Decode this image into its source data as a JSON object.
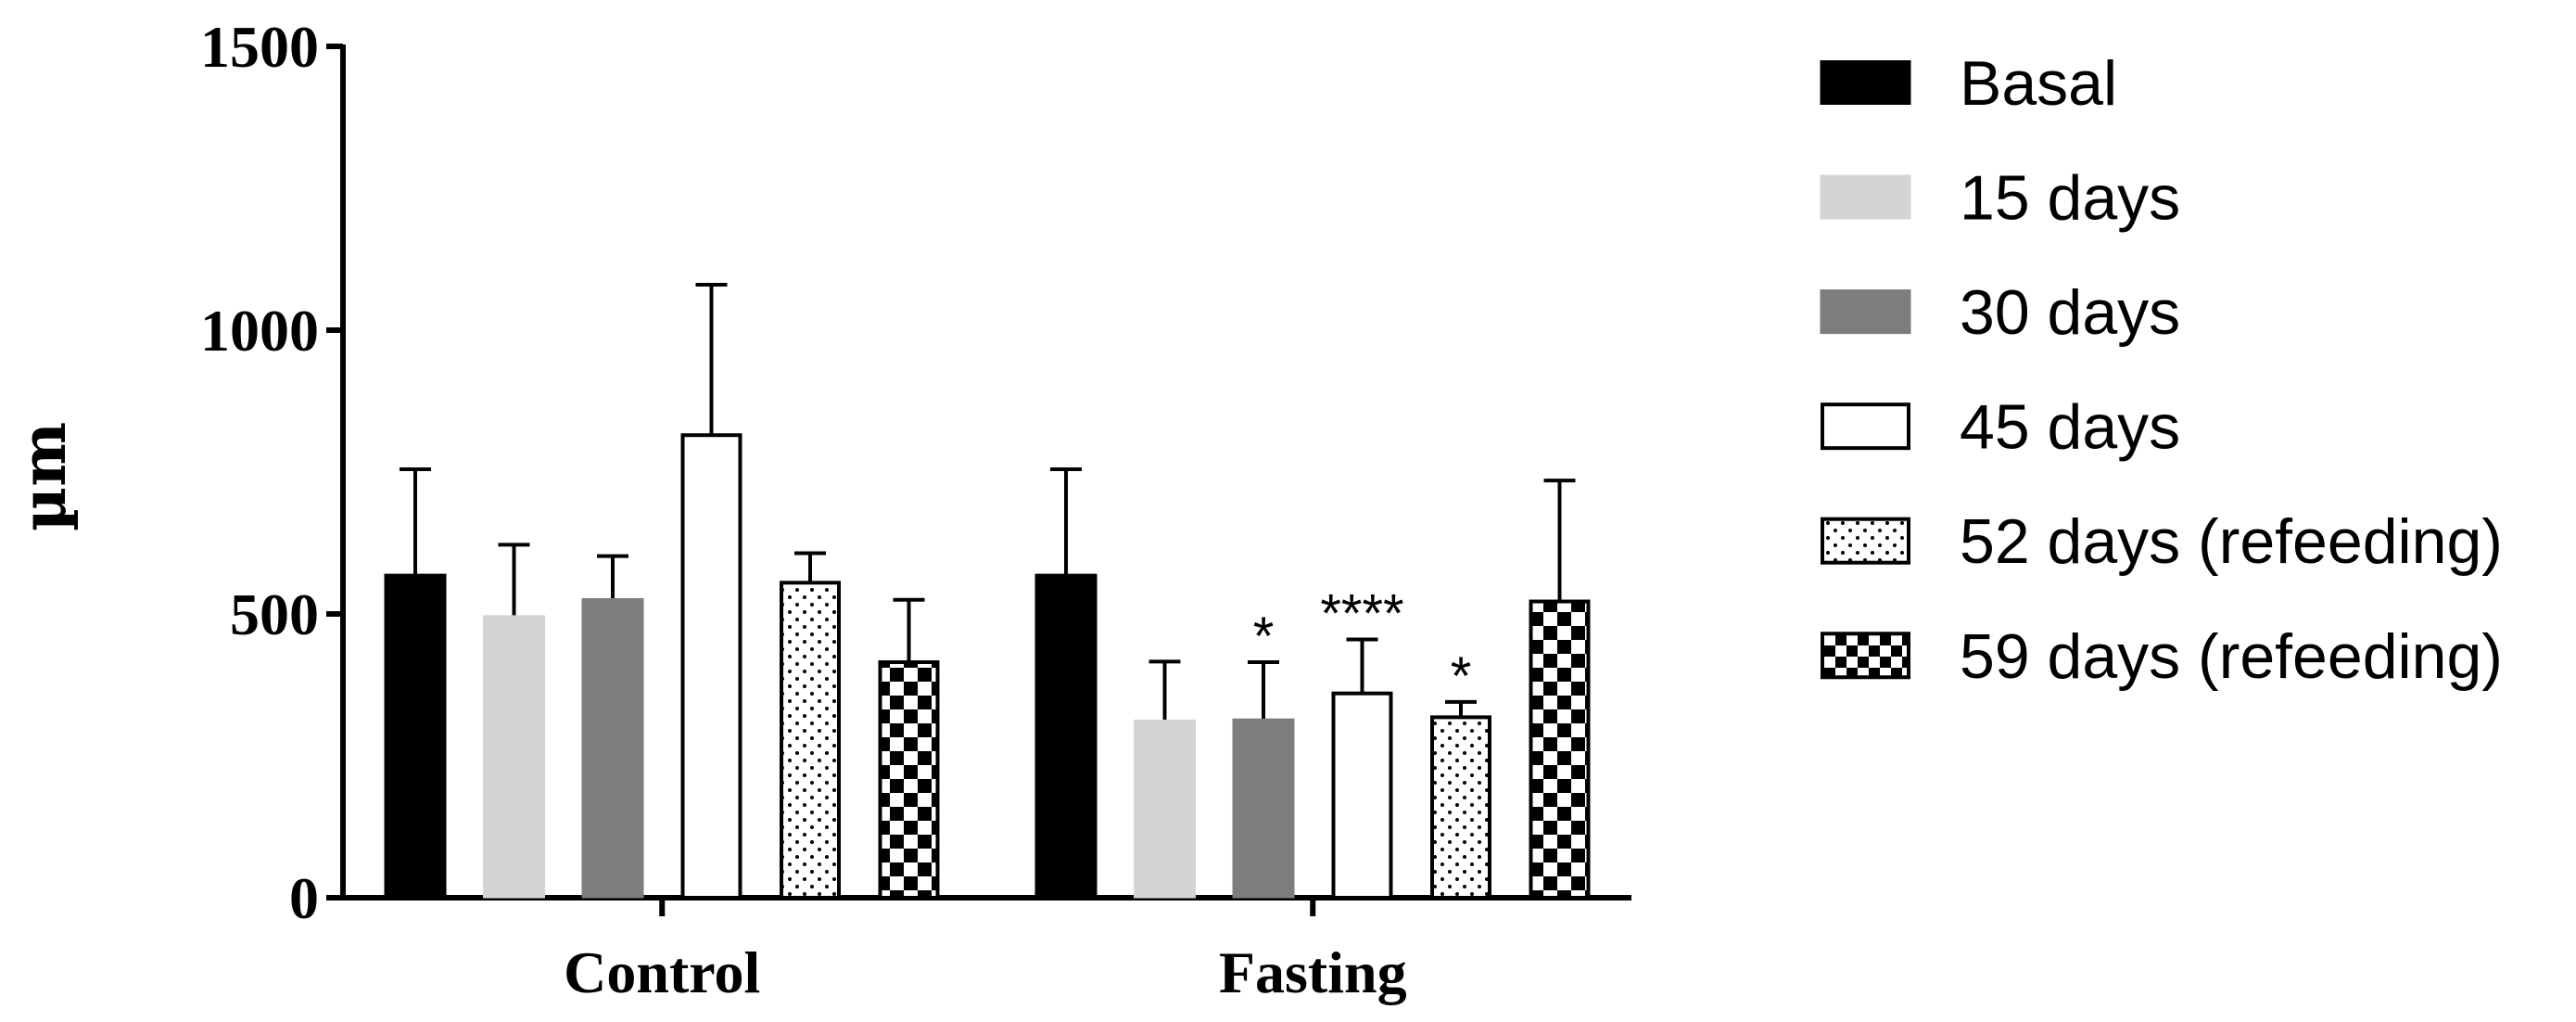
{
  "chart_data": {
    "type": "bar",
    "categories": [
      "Control",
      "Fasting"
    ],
    "ylabel": "µm",
    "xlabel": "",
    "title": "",
    "ylim": [
      0,
      1500
    ],
    "yticks": [
      0,
      500,
      1000,
      1500
    ],
    "series": [
      {
        "name": "Basal",
        "pattern": "solid-black",
        "values": [
          570,
          570
        ],
        "errors": [
          185,
          185
        ],
        "significance": [
          "",
          ""
        ]
      },
      {
        "name": "15 days",
        "pattern": "solid-lightgray",
        "values": [
          497,
          313
        ],
        "errors": [
          125,
          103
        ],
        "significance": [
          "",
          ""
        ]
      },
      {
        "name": "30 days",
        "pattern": "solid-darkgray",
        "values": [
          527,
          315
        ],
        "errors": [
          75,
          100
        ],
        "significance": [
          "",
          "*"
        ]
      },
      {
        "name": "45 days",
        "pattern": "white",
        "values": [
          815,
          360
        ],
        "errors": [
          265,
          95
        ],
        "significance": [
          "",
          "****"
        ]
      },
      {
        "name": "52 days (refeeding)",
        "pattern": "dots",
        "values": [
          555,
          318
        ],
        "errors": [
          52,
          27
        ],
        "significance": [
          "",
          "*"
        ]
      },
      {
        "name": "59 days (refeeding)",
        "pattern": "checker",
        "values": [
          415,
          522
        ],
        "errors": [
          110,
          213
        ],
        "significance": [
          "",
          ""
        ]
      }
    ]
  }
}
